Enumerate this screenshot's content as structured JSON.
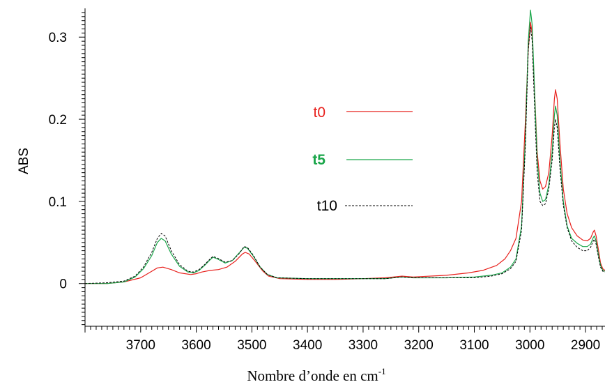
{
  "chart_data": {
    "type": "line",
    "xlabel": "Nombre d’onde en cm",
    "xlabel_sup": "-1",
    "ylabel": "ABS",
    "xlim": [
      3800,
      2865
    ],
    "ylim": [
      -0.052,
      0.335
    ],
    "x_reversed": true,
    "grid": false,
    "legend_position": "center",
    "x_ticks": [
      "3700",
      "3600",
      "3500",
      "3400",
      "3300",
      "3200",
      "3100",
      "3000",
      "2900"
    ],
    "y_ticks": [
      "0",
      "0.1",
      "0.2",
      "0.3"
    ],
    "colors": {
      "t0": "#e8201c",
      "t5": "#1aa64a",
      "t10": "#000000"
    },
    "series": [
      {
        "name": "t0",
        "style": "solid",
        "points": [
          [
            3800,
            0.0
          ],
          [
            3760,
            0.0
          ],
          [
            3730,
            0.002
          ],
          [
            3700,
            0.007
          ],
          [
            3680,
            0.015
          ],
          [
            3670,
            0.019
          ],
          [
            3660,
            0.02
          ],
          [
            3645,
            0.017
          ],
          [
            3630,
            0.013
          ],
          [
            3610,
            0.011
          ],
          [
            3600,
            0.012
          ],
          [
            3590,
            0.014
          ],
          [
            3575,
            0.016
          ],
          [
            3560,
            0.017
          ],
          [
            3545,
            0.02
          ],
          [
            3530,
            0.027
          ],
          [
            3517,
            0.036
          ],
          [
            3512,
            0.038
          ],
          [
            3505,
            0.036
          ],
          [
            3495,
            0.028
          ],
          [
            3480,
            0.015
          ],
          [
            3470,
            0.009
          ],
          [
            3450,
            0.006
          ],
          [
            3400,
            0.005
          ],
          [
            3350,
            0.005
          ],
          [
            3300,
            0.006
          ],
          [
            3260,
            0.007
          ],
          [
            3230,
            0.009
          ],
          [
            3210,
            0.008
          ],
          [
            3150,
            0.01
          ],
          [
            3110,
            0.013
          ],
          [
            3085,
            0.016
          ],
          [
            3060,
            0.022
          ],
          [
            3045,
            0.03
          ],
          [
            3035,
            0.04
          ],
          [
            3025,
            0.055
          ],
          [
            3015,
            0.1
          ],
          [
            3008,
            0.2
          ],
          [
            3003,
            0.285
          ],
          [
            2999,
            0.318
          ],
          [
            2996,
            0.305
          ],
          [
            2992,
            0.24
          ],
          [
            2987,
            0.16
          ],
          [
            2982,
            0.125
          ],
          [
            2977,
            0.115
          ],
          [
            2972,
            0.118
          ],
          [
            2966,
            0.135
          ],
          [
            2960,
            0.18
          ],
          [
            2956,
            0.225
          ],
          [
            2954,
            0.236
          ],
          [
            2951,
            0.225
          ],
          [
            2946,
            0.17
          ],
          [
            2940,
            0.115
          ],
          [
            2933,
            0.085
          ],
          [
            2925,
            0.068
          ],
          [
            2915,
            0.058
          ],
          [
            2905,
            0.053
          ],
          [
            2897,
            0.052
          ],
          [
            2891,
            0.055
          ],
          [
            2886,
            0.063
          ],
          [
            2884,
            0.065
          ],
          [
            2881,
            0.058
          ],
          [
            2877,
            0.042
          ],
          [
            2873,
            0.025
          ],
          [
            2869,
            0.018
          ],
          [
            2865,
            0.016
          ]
        ]
      },
      {
        "name": "t5",
        "style": "solid",
        "points": [
          [
            3800,
            0.0
          ],
          [
            3760,
            0.0
          ],
          [
            3730,
            0.002
          ],
          [
            3710,
            0.008
          ],
          [
            3695,
            0.018
          ],
          [
            3680,
            0.034
          ],
          [
            3670,
            0.05
          ],
          [
            3663,
            0.055
          ],
          [
            3656,
            0.052
          ],
          [
            3645,
            0.036
          ],
          [
            3630,
            0.021
          ],
          [
            3615,
            0.014
          ],
          [
            3605,
            0.013
          ],
          [
            3595,
            0.016
          ],
          [
            3585,
            0.022
          ],
          [
            3575,
            0.029
          ],
          [
            3570,
            0.032
          ],
          [
            3562,
            0.03
          ],
          [
            3548,
            0.025
          ],
          [
            3535,
            0.028
          ],
          [
            3522,
            0.038
          ],
          [
            3514,
            0.044
          ],
          [
            3508,
            0.043
          ],
          [
            3498,
            0.034
          ],
          [
            3485,
            0.02
          ],
          [
            3472,
            0.011
          ],
          [
            3455,
            0.007
          ],
          [
            3400,
            0.006
          ],
          [
            3350,
            0.006
          ],
          [
            3300,
            0.006
          ],
          [
            3260,
            0.006
          ],
          [
            3230,
            0.008
          ],
          [
            3210,
            0.007
          ],
          [
            3150,
            0.007
          ],
          [
            3100,
            0.008
          ],
          [
            3070,
            0.01
          ],
          [
            3050,
            0.013
          ],
          [
            3035,
            0.02
          ],
          [
            3025,
            0.03
          ],
          [
            3015,
            0.07
          ],
          [
            3008,
            0.18
          ],
          [
            3003,
            0.295
          ],
          [
            2999,
            0.333
          ],
          [
            2996,
            0.315
          ],
          [
            2992,
            0.24
          ],
          [
            2987,
            0.15
          ],
          [
            2982,
            0.11
          ],
          [
            2977,
            0.1
          ],
          [
            2972,
            0.102
          ],
          [
            2966,
            0.12
          ],
          [
            2960,
            0.16
          ],
          [
            2956,
            0.205
          ],
          [
            2954,
            0.216
          ],
          [
            2951,
            0.205
          ],
          [
            2946,
            0.15
          ],
          [
            2940,
            0.1
          ],
          [
            2933,
            0.07
          ],
          [
            2925,
            0.055
          ],
          [
            2915,
            0.049
          ],
          [
            2905,
            0.045
          ],
          [
            2897,
            0.045
          ],
          [
            2891,
            0.048
          ],
          [
            2886,
            0.056
          ],
          [
            2884,
            0.058
          ],
          [
            2881,
            0.052
          ],
          [
            2877,
            0.036
          ],
          [
            2873,
            0.022
          ],
          [
            2869,
            0.016
          ],
          [
            2865,
            0.015
          ]
        ]
      },
      {
        "name": "t10",
        "style": "dashed",
        "points": [
          [
            3800,
            0.0
          ],
          [
            3760,
            0.001
          ],
          [
            3730,
            0.003
          ],
          [
            3710,
            0.009
          ],
          [
            3695,
            0.02
          ],
          [
            3680,
            0.038
          ],
          [
            3670,
            0.055
          ],
          [
            3663,
            0.061
          ],
          [
            3656,
            0.058
          ],
          [
            3645,
            0.04
          ],
          [
            3630,
            0.023
          ],
          [
            3615,
            0.015
          ],
          [
            3605,
            0.014
          ],
          [
            3595,
            0.017
          ],
          [
            3585,
            0.023
          ],
          [
            3575,
            0.03
          ],
          [
            3570,
            0.033
          ],
          [
            3562,
            0.031
          ],
          [
            3548,
            0.026
          ],
          [
            3535,
            0.028
          ],
          [
            3522,
            0.037
          ],
          [
            3514,
            0.045
          ],
          [
            3508,
            0.044
          ],
          [
            3498,
            0.035
          ],
          [
            3485,
            0.02
          ],
          [
            3472,
            0.011
          ],
          [
            3455,
            0.007
          ],
          [
            3400,
            0.006
          ],
          [
            3350,
            0.006
          ],
          [
            3300,
            0.006
          ],
          [
            3260,
            0.006
          ],
          [
            3230,
            0.008
          ],
          [
            3210,
            0.007
          ],
          [
            3150,
            0.007
          ],
          [
            3100,
            0.007
          ],
          [
            3070,
            0.009
          ],
          [
            3050,
            0.012
          ],
          [
            3035,
            0.018
          ],
          [
            3025,
            0.027
          ],
          [
            3015,
            0.065
          ],
          [
            3008,
            0.17
          ],
          [
            3003,
            0.285
          ],
          [
            2999,
            0.312
          ],
          [
            2996,
            0.295
          ],
          [
            2992,
            0.22
          ],
          [
            2987,
            0.135
          ],
          [
            2982,
            0.1
          ],
          [
            2977,
            0.095
          ],
          [
            2972,
            0.097
          ],
          [
            2966,
            0.115
          ],
          [
            2960,
            0.15
          ],
          [
            2956,
            0.19
          ],
          [
            2954,
            0.2
          ],
          [
            2951,
            0.19
          ],
          [
            2946,
            0.14
          ],
          [
            2940,
            0.095
          ],
          [
            2933,
            0.068
          ],
          [
            2925,
            0.052
          ],
          [
            2915,
            0.044
          ],
          [
            2905,
            0.04
          ],
          [
            2897,
            0.04
          ],
          [
            2891,
            0.044
          ],
          [
            2886,
            0.052
          ],
          [
            2884,
            0.054
          ],
          [
            2881,
            0.048
          ],
          [
            2877,
            0.033
          ],
          [
            2873,
            0.02
          ],
          [
            2869,
            0.015
          ],
          [
            2865,
            0.014
          ]
        ]
      }
    ]
  }
}
